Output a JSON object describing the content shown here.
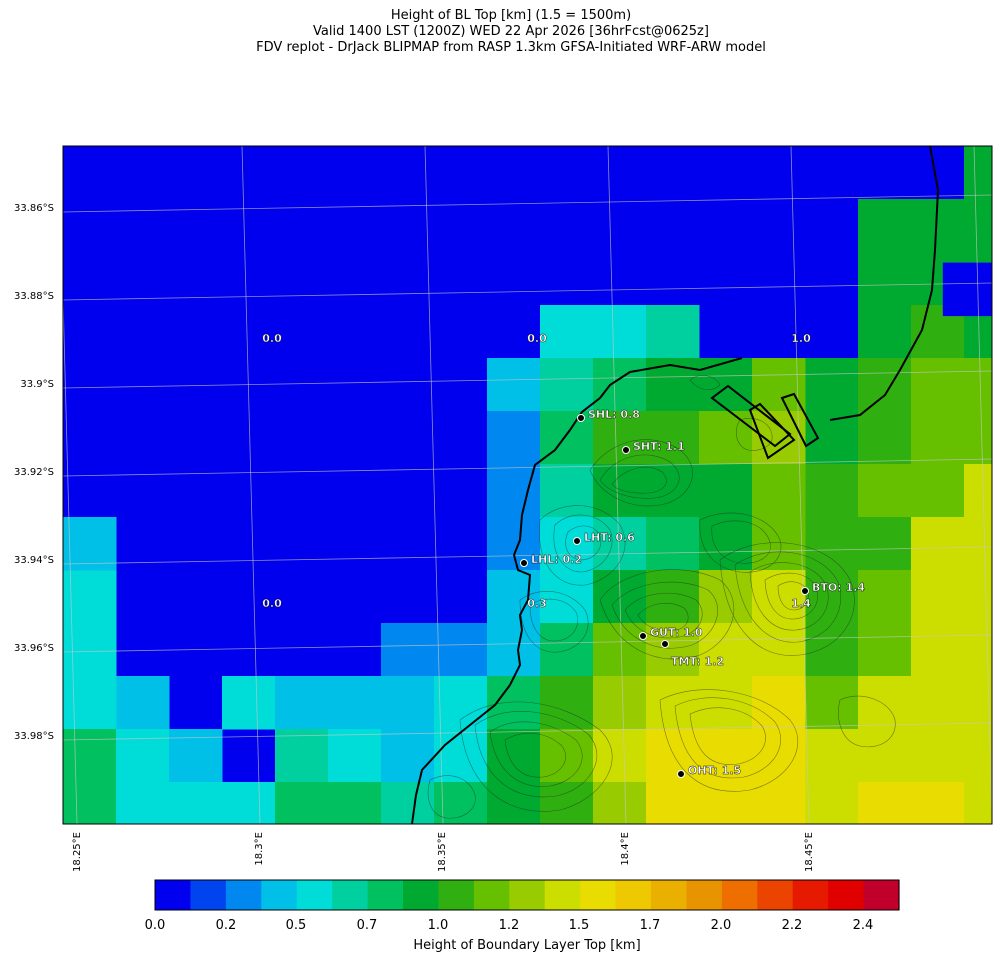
{
  "title": {
    "line1": "Height of BL Top [km] (1.5 = 1500m)",
    "line2": "Valid 1400 LST (1200Z) WED 22 Apr 2026 [36hrFcst@0625z]",
    "line3": "FDV replot - DrJack BLIPMAP from RASP 1.3km GFSA-Initiated WRF-ARW model"
  },
  "axes": {
    "lat_labels": [
      "33.86°S",
      "33.88°S",
      "33.9°S",
      "33.92°S",
      "33.94°S",
      "33.96°S",
      "33.98°S"
    ],
    "lon_labels": [
      "18.25°E",
      "18.3°E",
      "18.35°E",
      "18.4°E",
      "18.45°E"
    ]
  },
  "grid_values": [
    {
      "text": "0.0"
    },
    {
      "text": "0.0"
    },
    {
      "text": "1.0"
    },
    {
      "text": "0.0"
    },
    {
      "text": "0.3"
    },
    {
      "text": "1.4"
    }
  ],
  "sites": [
    {
      "label": "SHL: 0.8"
    },
    {
      "label": "SHT: 1.1"
    },
    {
      "label": "LHT: 0.6"
    },
    {
      "label": "LHL: 0.2"
    },
    {
      "label": "BTO: 1.4"
    },
    {
      "label": "GUT: 1.0"
    },
    {
      "label": "TMT: 1.2"
    },
    {
      "label": "OHT: 1.5"
    }
  ],
  "colorbar": {
    "title": "Height of Boundary Layer Top [km]",
    "tick_labels": [
      "0.0",
      "0.2",
      "0.5",
      "0.7",
      "1.0",
      "1.2",
      "1.5",
      "1.7",
      "2.0",
      "2.2",
      "2.4"
    ],
    "colors": [
      "#0000ee",
      "#0044f0",
      "#0088f0",
      "#00c0e8",
      "#00ddd8",
      "#00d0a0",
      "#00c060",
      "#00aa30",
      "#2fb010",
      "#66c000",
      "#99cc00",
      "#ccdd00",
      "#e8dc00",
      "#eec800",
      "#eab000",
      "#e89400",
      "#ee6e00",
      "#ea4400",
      "#e61a00",
      "#e00000",
      "#c0002a"
    ]
  }
}
